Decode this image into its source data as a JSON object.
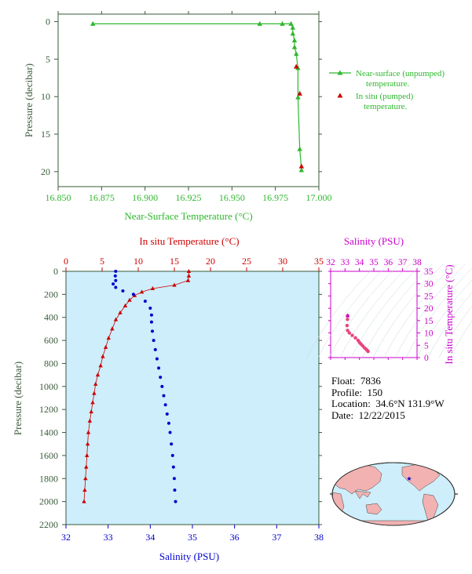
{
  "colors": {
    "unpumped": "#2eb82e",
    "pumped": "#cc0000",
    "salinity": "#0000cc",
    "ts": "#cc00cc",
    "ts_points": "#e8437e",
    "axis_dark": "#3a5a3a",
    "panel_bg": "#cdeefa"
  },
  "info": {
    "float_label": "Float:",
    "float_value": "7836",
    "profile_label": "Profile:",
    "profile_value": "150",
    "location_label": "Location:",
    "location_value": "34.6°N 131.9°W",
    "date_label": "Date:",
    "date_value": "12/22/2015"
  },
  "credit": "",
  "map": {
    "float_marker": "star-icon"
  },
  "chart_data": [
    {
      "type": "line",
      "xlabel": "Near-Surface Temperature (°C)",
      "ylabel": "Pressure (decibar)",
      "xlim": [
        16.85,
        17.0
      ],
      "ylim": [
        22,
        -1
      ],
      "xticks": [
        "16.850",
        "16.875",
        "16.900",
        "16.925",
        "16.950",
        "16.975",
        "17.000"
      ],
      "yticks": [
        "0",
        "5",
        "10",
        "15",
        "20"
      ],
      "legend_position": "right",
      "series": [
        {
          "name": "Near-surface (unpumped) temperature.",
          "x": [
            16.87,
            16.966,
            16.979,
            16.984,
            16.985,
            16.985,
            16.986,
            16.986,
            16.987,
            16.988,
            16.988,
            16.989,
            16.99
          ],
          "y": [
            0.3,
            0.3,
            0.3,
            0.3,
            0.8,
            1.6,
            2.5,
            3.4,
            4.3,
            6.2,
            10.1,
            17.0,
            19.8
          ]
        },
        {
          "name": "In situ (pumped) temperature.",
          "x": [
            16.987,
            16.989,
            16.99
          ],
          "y": [
            6.0,
            9.6,
            19.3
          ]
        }
      ]
    },
    {
      "type": "line",
      "xlabel": "In situ Temperature (°C)",
      "x2label": "Salinity (PSU)",
      "ylabel": "Pressure (decibar)",
      "xlim": [
        0,
        35
      ],
      "x2lim": [
        32,
        38
      ],
      "ylim": [
        2200,
        0
      ],
      "xticks": [
        "0",
        "5",
        "10",
        "15",
        "20",
        "25",
        "30",
        "35"
      ],
      "x2ticks": [
        "32",
        "33",
        "34",
        "35",
        "36",
        "37",
        "38"
      ],
      "yticks": [
        "0",
        "200",
        "400",
        "600",
        "800",
        "1000",
        "1200",
        "1400",
        "1600",
        "1800",
        "2000",
        "2200"
      ],
      "series": [
        {
          "name": "In situ Temperature",
          "x": [
            17.0,
            17.0,
            16.9,
            15.0,
            12.0,
            10.5,
            9.5,
            8.8,
            8.2,
            7.5,
            6.9,
            6.4,
            5.9,
            5.5,
            5.1,
            4.8,
            4.4,
            4.1,
            3.9,
            3.7,
            3.5,
            3.3,
            3.1,
            3.0,
            2.9,
            2.8,
            2.7,
            2.6,
            2.5
          ],
          "y": [
            0,
            40,
            80,
            120,
            150,
            180,
            210,
            250,
            300,
            360,
            420,
            500,
            580,
            660,
            740,
            820,
            900,
            980,
            1060,
            1140,
            1220,
            1300,
            1400,
            1500,
            1600,
            1700,
            1800,
            1900,
            2000
          ]
        },
        {
          "name": "Salinity",
          "x": [
            33.18,
            33.17,
            33.18,
            33.12,
            33.18,
            33.35,
            33.6,
            33.88,
            34.0,
            34.03,
            34.03,
            34.05,
            34.08,
            34.12,
            34.16,
            34.2,
            34.24,
            34.28,
            34.32,
            34.36,
            34.4,
            34.44,
            34.47,
            34.5,
            34.53,
            34.55,
            34.57,
            34.58,
            34.6
          ],
          "y": [
            0,
            40,
            80,
            110,
            140,
            170,
            200,
            260,
            320,
            380,
            440,
            520,
            600,
            680,
            760,
            840,
            920,
            1000,
            1080,
            1160,
            1240,
            1320,
            1400,
            1500,
            1600,
            1700,
            1800,
            1900,
            2000
          ]
        }
      ]
    },
    {
      "type": "scatter",
      "xlabel": "Salinity (PSU)",
      "ylabel": "In situ Temperature (°C)",
      "xlim": [
        32,
        38
      ],
      "ylim": [
        0,
        35
      ],
      "xticks": [
        "32",
        "33",
        "34",
        "35",
        "36",
        "37",
        "38"
      ],
      "yticks": [
        "0",
        "5",
        "10",
        "15",
        "20",
        "25",
        "30",
        "35"
      ],
      "series": [
        {
          "name": "",
          "x": [
            33.18,
            33.17,
            33.14,
            33.18,
            33.3,
            33.5,
            33.72,
            33.9,
            34.0,
            34.1,
            34.22,
            34.34,
            34.46,
            34.55,
            34.6
          ],
          "y": [
            17.0,
            15.5,
            13.0,
            11.0,
            10.0,
            9.0,
            8.0,
            7.0,
            6.2,
            5.5,
            4.8,
            4.0,
            3.4,
            2.9,
            2.5
          ]
        }
      ]
    }
  ]
}
